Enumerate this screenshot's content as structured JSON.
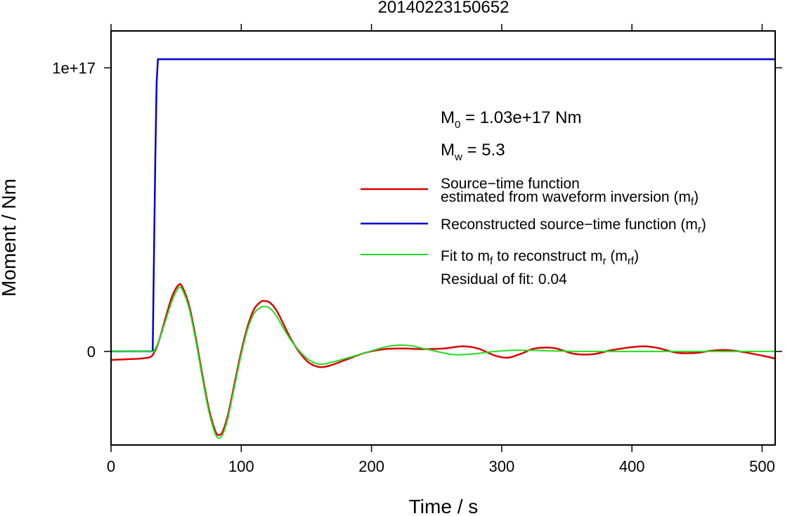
{
  "chart_data": {
    "type": "line",
    "title": "20140223150652",
    "xlabel": "Time / s",
    "ylabel": "Moment / Nm",
    "xlim": [
      0,
      510
    ],
    "ylim": [
      -3.3e+16,
      1.13e+17
    ],
    "xticks": [
      0,
      100,
      200,
      300,
      400,
      500
    ],
    "xtick_labels": [
      "0",
      "100",
      "200",
      "300",
      "400",
      "500"
    ],
    "yticks": [
      0,
      1e+17
    ],
    "ytick_labels": [
      "0",
      "1e+17"
    ],
    "grid": false,
    "annotations": {
      "m0": "M0 = 1.03e+17 Nm",
      "m0_main": "M",
      "m0_sub": "0",
      "m0_rest": " = 1.03e+17 Nm",
      "mw": "Mw = 5.3",
      "mw_main": "M",
      "mw_sub": "w",
      "mw_rest": " = 5.3",
      "residual": "Residual of fit: 0.04"
    },
    "legend": {
      "position": "right",
      "entries": [
        {
          "line1": "Source−time function",
          "line2": "estimated from waveform inversion (m",
          "sub": "f",
          "close": ")",
          "color": "#dd0000"
        },
        {
          "line1": "Reconstructed source−time function (m",
          "sub": "r",
          "close": ")",
          "color": "#0000cc"
        },
        {
          "line1": "Fit to m",
          "sub1": "f",
          "mid": " to reconstruct m",
          "sub2": "r",
          "mid2": " (m",
          "sub3": "rf",
          "close": ")",
          "color": "#22dd22"
        }
      ]
    },
    "series": [
      {
        "name": "Source−time function estimated from waveform inversion (mf)",
        "color": "#dd0000",
        "x": [
          0,
          10,
          20,
          25,
          30,
          33,
          37,
          42,
          47,
          52,
          55,
          60,
          65,
          70,
          75,
          80,
          83,
          86,
          90,
          95,
          100,
          105,
          110,
          115,
          118,
          122,
          127,
          132,
          138,
          145,
          152,
          160,
          168,
          180,
          195,
          210,
          225,
          240,
          255,
          270,
          282,
          295,
          305,
          315,
          325,
          340,
          355,
          370,
          385,
          400,
          410,
          420,
          435,
          450,
          460,
          472,
          485,
          500,
          510
        ],
        "y": [
          -0.03,
          -0.028,
          -0.026,
          -0.024,
          -0.02,
          -0.005,
          0.04,
          0.12,
          0.195,
          0.235,
          0.225,
          0.16,
          0.05,
          -0.08,
          -0.2,
          -0.28,
          -0.295,
          -0.28,
          -0.22,
          -0.11,
          0.0,
          0.09,
          0.15,
          0.175,
          0.178,
          0.172,
          0.145,
          0.1,
          0.045,
          -0.005,
          -0.04,
          -0.055,
          -0.05,
          -0.03,
          -0.005,
          0.008,
          0.01,
          0.008,
          0.01,
          0.018,
          0.01,
          -0.015,
          -0.022,
          -0.008,
          0.01,
          0.012,
          -0.008,
          -0.01,
          0.005,
          0.015,
          0.018,
          0.012,
          -0.005,
          -0.005,
          0.002,
          0.005,
          -0.002,
          -0.015,
          -0.025
        ]
      },
      {
        "name": "Reconstructed source−time function (mr)",
        "color": "#0000cc",
        "x": [
          0,
          32,
          33,
          34,
          35,
          36,
          510
        ],
        "y": [
          0,
          0,
          0.34,
          0.68,
          0.95,
          1.03,
          1.03
        ]
      },
      {
        "name": "Fit to mf to reconstruct mr (mrf)",
        "color": "#22dd22",
        "x": [
          0,
          30,
          33,
          37,
          42,
          47,
          52,
          55,
          60,
          65,
          70,
          75,
          80,
          83,
          86,
          90,
          95,
          100,
          105,
          110,
          115,
          118,
          122,
          127,
          132,
          138,
          145,
          152,
          160,
          168,
          180,
          195,
          210,
          220,
          230,
          240,
          255,
          265,
          280,
          295,
          310,
          330,
          360,
          400,
          450,
          510
        ],
        "y": [
          0,
          0,
          0.003,
          0.04,
          0.11,
          0.18,
          0.225,
          0.215,
          0.15,
          0.04,
          -0.09,
          -0.21,
          -0.29,
          -0.305,
          -0.29,
          -0.23,
          -0.12,
          -0.01,
          0.08,
          0.135,
          0.155,
          0.158,
          0.152,
          0.125,
          0.085,
          0.04,
          0.0,
          -0.03,
          -0.045,
          -0.04,
          -0.025,
          -0.005,
          0.015,
          0.022,
          0.02,
          0.01,
          -0.005,
          -0.012,
          -0.008,
          0.0,
          0.004,
          0.003,
          0.0,
          0.0,
          0.0,
          0.0
        ]
      }
    ]
  }
}
